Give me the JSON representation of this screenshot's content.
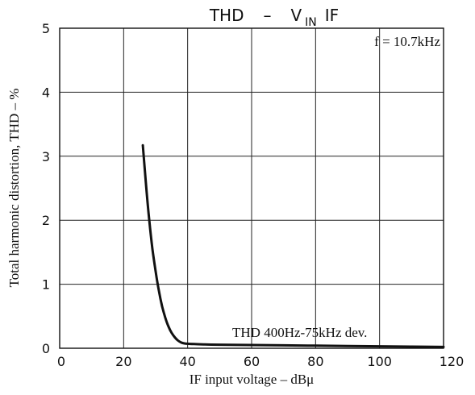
{
  "chart_data": {
    "type": "line",
    "title": {
      "prefix": "THD",
      "dash": "–",
      "v": "V",
      "sub": "IN",
      "suffix": "IF"
    },
    "xlabel": "IF input voltage  –  dBμ",
    "ylabel": "Total harmonic distortion, THD  –  %",
    "xlim": [
      0,
      120
    ],
    "ylim": [
      0,
      5
    ],
    "x_ticks": [
      0,
      20,
      40,
      60,
      80,
      100,
      120
    ],
    "y_ticks": [
      0,
      1,
      2,
      3,
      4,
      5
    ],
    "grid": true,
    "annotations": {
      "condition": "f = 10.7kHz",
      "series_note": "THD 400Hz-75kHz dev."
    },
    "series": [
      {
        "x": [
          26,
          27,
          28,
          29,
          30,
          31,
          32,
          33,
          34,
          35,
          36,
          37,
          38,
          39,
          40,
          42,
          45,
          50,
          60,
          70,
          80,
          90,
          100,
          110,
          120
        ],
        "y": [
          3.17,
          2.55,
          2.0,
          1.55,
          1.2,
          0.9,
          0.66,
          0.48,
          0.34,
          0.24,
          0.17,
          0.12,
          0.09,
          0.075,
          0.07,
          0.065,
          0.06,
          0.055,
          0.05,
          0.045,
          0.04,
          0.035,
          0.03,
          0.025,
          0.02
        ]
      }
    ]
  }
}
